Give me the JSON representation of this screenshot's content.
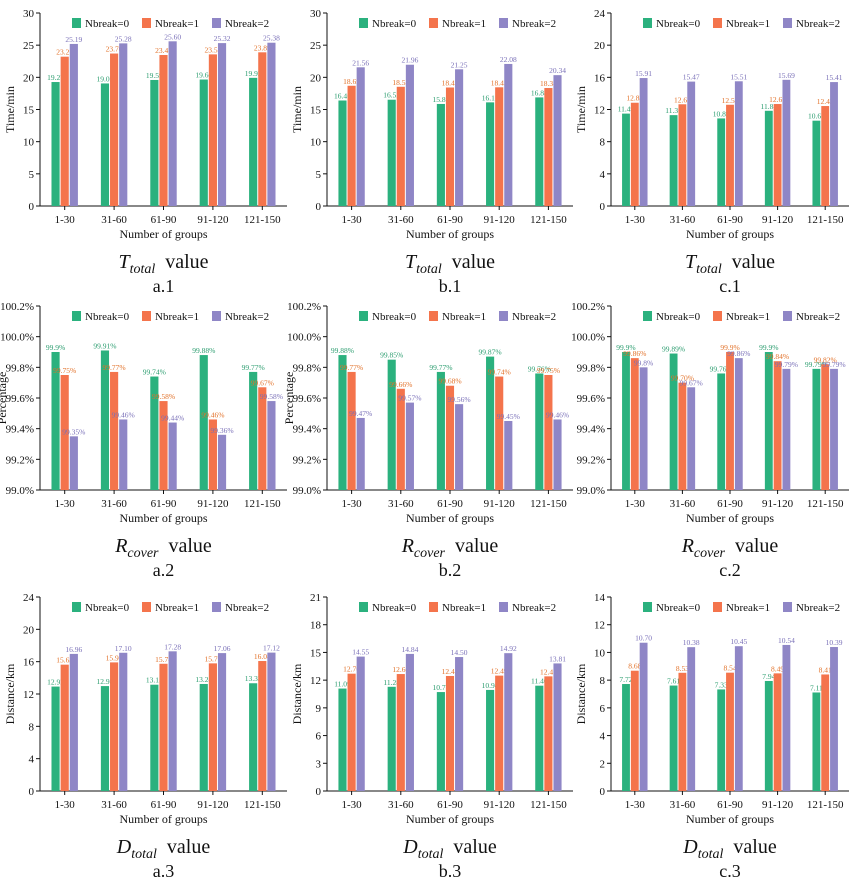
{
  "colors": {
    "nbreak0": "#2bb17e",
    "nbreak1": "#f4744c",
    "nbreak2": "#8f86c6",
    "label0": "#2a9c6e",
    "label1": "#e2722a",
    "label2": "#7a70b8",
    "axis": "#111111",
    "grid": "#ececec"
  },
  "chart_data": [
    {
      "id": "a1",
      "type": "bar",
      "xlabel": "Number of groups",
      "ylabel": "Time/min",
      "metric": "T",
      "metric_sub": "total",
      "metric_suffix": "value",
      "sub_label": "a.1",
      "categories": [
        "1-30",
        "31-60",
        "61-90",
        "91-120",
        "121-150"
      ],
      "series": [
        {
          "name": "Nbreak=0",
          "values": [
            19.27,
            19.05,
            19.59,
            19.66,
            19.92
          ],
          "labels": [
            "19.27",
            "19.05",
            "19.59",
            "19.66",
            "19.92"
          ]
        },
        {
          "name": "Nbreak=1",
          "values": [
            23.21,
            23.7,
            23.47,
            23.57,
            23.89
          ],
          "labels": [
            "23.21",
            "23.70",
            "23.47",
            "23.57",
            "23.89"
          ]
        },
        {
          "name": "Nbreak=2",
          "values": [
            25.19,
            25.28,
            25.6,
            25.32,
            25.38
          ],
          "labels": [
            "25.19",
            "25.28",
            "25.60",
            "25.32",
            "25.38"
          ]
        }
      ],
      "ylim": [
        0,
        30
      ],
      "yticks": [
        0,
        5,
        10,
        15,
        20,
        25,
        30
      ],
      "ytick_labels": [
        "0",
        "5",
        "10",
        "15",
        "20",
        "25",
        "30"
      ]
    },
    {
      "id": "b1",
      "type": "bar",
      "xlabel": "Number of groups",
      "ylabel": "Time/min",
      "metric": "T",
      "metric_sub": "total",
      "metric_suffix": "value",
      "sub_label": "b.1",
      "categories": [
        "1-30",
        "31-60",
        "61-90",
        "91-120",
        "121-150"
      ],
      "series": [
        {
          "name": "Nbreak=0",
          "values": [
            16.4,
            16.52,
            15.86,
            16.11,
            16.88
          ],
          "labels": [
            "16.40",
            "16.52",
            "15.86",
            "16.11",
            "16.88"
          ]
        },
        {
          "name": "Nbreak=1",
          "values": [
            18.69,
            18.53,
            18.42,
            18.45,
            18.34
          ],
          "labels": [
            "18.69",
            "18.53",
            "18.42",
            "18.45",
            "18.34"
          ]
        },
        {
          "name": "Nbreak=2",
          "values": [
            21.56,
            21.96,
            21.25,
            22.08,
            20.34
          ],
          "labels": [
            "21.56",
            "21.96",
            "21.25",
            "22.08",
            "20.34"
          ]
        }
      ],
      "ylim": [
        0,
        30
      ],
      "yticks": [
        0,
        5,
        10,
        15,
        20,
        25,
        30
      ],
      "ytick_labels": [
        "0",
        "5",
        "10",
        "15",
        "20",
        "25",
        "30"
      ]
    },
    {
      "id": "c1",
      "type": "bar",
      "xlabel": "Number of groups",
      "ylabel": "Time/min",
      "metric": "T",
      "metric_sub": "total",
      "metric_suffix": "value",
      "sub_label": "c.1",
      "categories": [
        "1-30",
        "31-60",
        "61-90",
        "91-120",
        "121-150"
      ],
      "series": [
        {
          "name": "Nbreak=0",
          "values": [
            11.49,
            11.3,
            10.89,
            11.84,
            10.61
          ],
          "labels": [
            "11.49",
            "11.30",
            "10.89",
            "11.84",
            "10.61"
          ]
        },
        {
          "name": "Nbreak=1",
          "values": [
            12.84,
            12.65,
            12.59,
            12.68,
            12.43
          ],
          "labels": [
            "12.84",
            "12.65",
            "12.59",
            "12.68",
            "12.43"
          ]
        },
        {
          "name": "Nbreak=2",
          "values": [
            15.91,
            15.47,
            15.51,
            15.69,
            15.41
          ],
          "labels": [
            "15.91",
            "15.47",
            "15.51",
            "15.69",
            "15.41"
          ]
        }
      ],
      "ylim": [
        0,
        24
      ],
      "yticks": [
        0,
        4,
        8,
        12,
        16,
        20,
        24
      ],
      "ytick_labels": [
        "0",
        "4",
        "8",
        "12",
        "16",
        "20",
        "24"
      ]
    },
    {
      "id": "a2",
      "type": "bar",
      "xlabel": "Number of groups",
      "ylabel": "Percentage",
      "metric": "R",
      "metric_sub": "cover",
      "metric_suffix": "value",
      "sub_label": "a.2",
      "categories": [
        "1-30",
        "31-60",
        "61-90",
        "91-120",
        "121-150"
      ],
      "series": [
        {
          "name": "Nbreak=0",
          "values": [
            99.9,
            99.91,
            99.74,
            99.88,
            99.77
          ],
          "labels": [
            "99.9%",
            "99.91%",
            "99.74%",
            "99.88%",
            "99.77%"
          ]
        },
        {
          "name": "Nbreak=1",
          "values": [
            99.75,
            99.77,
            99.58,
            99.46,
            99.67
          ],
          "labels": [
            "99.75%",
            "99.77%",
            "99.58%",
            "99.46%",
            "99.67%"
          ]
        },
        {
          "name": "Nbreak=2",
          "values": [
            99.35,
            99.46,
            99.44,
            99.36,
            99.58
          ],
          "labels": [
            "99.35%",
            "99.46%",
            "99.44%",
            "99.36%",
            "99.58%"
          ]
        }
      ],
      "ylim": [
        99.0,
        100.2
      ],
      "yticks": [
        99.0,
        99.2,
        99.4,
        99.6,
        99.8,
        100.0,
        100.2
      ],
      "ytick_labels": [
        "99.0%",
        "99.2%",
        "99.4%",
        "99.6%",
        "99.8%",
        "100.0%",
        "100.2%"
      ]
    },
    {
      "id": "b2",
      "type": "bar",
      "xlabel": "Number of groups",
      "ylabel": "Percentage",
      "metric": "R",
      "metric_sub": "cover",
      "metric_suffix": "value",
      "sub_label": "b.2",
      "categories": [
        "1-30",
        "31-60",
        "61-90",
        "91-120",
        "121-150"
      ],
      "series": [
        {
          "name": "Nbreak=0",
          "values": [
            99.88,
            99.85,
            99.77,
            99.87,
            99.76
          ],
          "labels": [
            "99.88%",
            "99.85%",
            "99.77%",
            "99.87%",
            "99.76%"
          ]
        },
        {
          "name": "Nbreak=1",
          "values": [
            99.77,
            99.66,
            99.68,
            99.74,
            99.75
          ],
          "labels": [
            "99.77%",
            "99.66%",
            "99.68%",
            "99.74%",
            "99.75%"
          ]
        },
        {
          "name": "Nbreak=2",
          "values": [
            99.47,
            99.57,
            99.56,
            99.45,
            99.46
          ],
          "labels": [
            "99.47%",
            "99.57%",
            "99.56%",
            "99.45%",
            "99.46%"
          ]
        }
      ],
      "ylim": [
        99.0,
        100.2
      ],
      "yticks": [
        99.0,
        99.2,
        99.4,
        99.6,
        99.8,
        100.0,
        100.2
      ],
      "ytick_labels": [
        "99.0%",
        "99.2%",
        "99.4%",
        "99.6%",
        "99.8%",
        "100.0%",
        "100.2%"
      ]
    },
    {
      "id": "c2",
      "type": "bar",
      "xlabel": "Number of groups",
      "ylabel": "",
      "metric": "R",
      "metric_sub": "cover",
      "metric_suffix": "value",
      "sub_label": "c.2",
      "categories": [
        "1-30",
        "31-60",
        "61-90",
        "91-120",
        "121-150"
      ],
      "series": [
        {
          "name": "Nbreak=0",
          "values": [
            99.9,
            99.89,
            99.76,
            99.9,
            99.79
          ],
          "labels": [
            "99.9%",
            "99.89%",
            "99.76%",
            "99.9%",
            "99.79%"
          ]
        },
        {
          "name": "Nbreak=1",
          "values": [
            99.86,
            99.7,
            99.9,
            99.84,
            99.82
          ],
          "labels": [
            "99.86%",
            "99.70%",
            "99.9%",
            "99.84%",
            "99.82%"
          ]
        },
        {
          "name": "Nbreak=2",
          "values": [
            99.8,
            99.67,
            99.86,
            99.79,
            99.79
          ],
          "labels": [
            "99.8%",
            "99.67%",
            "99.86%",
            "99.79%",
            "99.79%"
          ]
        }
      ],
      "ylim": [
        99.0,
        100.2
      ],
      "yticks": [
        99.0,
        99.2,
        99.4,
        99.6,
        99.8,
        100.0,
        100.2
      ],
      "ytick_labels": [
        "99.0%",
        "99.2%",
        "99.4%",
        "99.6%",
        "99.8%",
        "100.0%",
        "100.2%"
      ]
    },
    {
      "id": "a3",
      "type": "bar",
      "xlabel": "Number of groups",
      "ylabel": "Distance/km",
      "metric": "D",
      "metric_sub": "total",
      "metric_suffix": "value",
      "sub_label": "a.3",
      "categories": [
        "1-30",
        "31-60",
        "61-90",
        "91-120",
        "121-150"
      ],
      "series": [
        {
          "name": "Nbreak=0",
          "values": [
            12.92,
            12.98,
            13.15,
            13.24,
            13.33
          ],
          "labels": [
            "12.92",
            "12.98",
            "13.15",
            "13.24",
            "13.33"
          ]
        },
        {
          "name": "Nbreak=1",
          "values": [
            15.63,
            15.91,
            15.74,
            15.79,
            16.08
          ],
          "labels": [
            "15.63",
            "15.91",
            "15.74",
            "15.79",
            "16.08"
          ]
        },
        {
          "name": "Nbreak=2",
          "values": [
            16.96,
            17.1,
            17.28,
            17.06,
            17.12
          ],
          "labels": [
            "16.96",
            "17.10",
            "17.28",
            "17.06",
            "17.12"
          ]
        }
      ],
      "ylim": [
        0,
        24
      ],
      "yticks": [
        0,
        4,
        8,
        12,
        16,
        20,
        24
      ],
      "ytick_labels": [
        "0",
        "4",
        "8",
        "12",
        "16",
        "20",
        "24"
      ]
    },
    {
      "id": "b3",
      "type": "bar",
      "xlabel": "Number of groups",
      "ylabel": "Distance/km",
      "metric": "D",
      "metric_sub": "total",
      "metric_suffix": "value",
      "sub_label": "b.3",
      "categories": [
        "1-30",
        "31-60",
        "61-90",
        "91-120",
        "121-150"
      ],
      "series": [
        {
          "name": "Nbreak=0",
          "values": [
            11.09,
            11.28,
            10.71,
            10.94,
            11.4
          ],
          "labels": [
            "11.09",
            "11.28",
            "10.71",
            "10.94",
            "11.40"
          ]
        },
        {
          "name": "Nbreak=1",
          "values": [
            12.7,
            12.66,
            12.45,
            12.49,
            12.41
          ],
          "labels": [
            "12.70",
            "12.66",
            "12.45",
            "12.49",
            "12.41"
          ]
        },
        {
          "name": "Nbreak=2",
          "values": [
            14.55,
            14.84,
            14.5,
            14.92,
            13.81
          ],
          "labels": [
            "14.55",
            "14.84",
            "14.50",
            "14.92",
            "13.81"
          ]
        }
      ],
      "ylim": [
        0,
        21
      ],
      "yticks": [
        0,
        3,
        6,
        9,
        12,
        15,
        18,
        21
      ],
      "ytick_labels": [
        "0",
        "3",
        "6",
        "9",
        "12",
        "15",
        "18",
        "21"
      ]
    },
    {
      "id": "c3",
      "type": "bar",
      "xlabel": "Number of groups",
      "ylabel": "Distance/km",
      "metric": "D",
      "metric_sub": "total",
      "metric_suffix": "value",
      "sub_label": "c.3",
      "categories": [
        "1-30",
        "31-60",
        "61-90",
        "91-120",
        "121-150"
      ],
      "series": [
        {
          "name": "Nbreak=0",
          "values": [
            7.72,
            7.61,
            7.33,
            7.94,
            7.11
          ],
          "labels": [
            "7.72",
            "7.61",
            "7.33",
            "7.94",
            "7.11"
          ]
        },
        {
          "name": "Nbreak=1",
          "values": [
            8.68,
            8.53,
            8.54,
            8.49,
            8.41
          ],
          "labels": [
            "8.68",
            "8.53",
            "8.54",
            "8.49",
            "8.41"
          ]
        },
        {
          "name": "Nbreak=2",
          "values": [
            10.7,
            10.38,
            10.45,
            10.54,
            10.39
          ],
          "labels": [
            "10.70",
            "10.38",
            "10.45",
            "10.54",
            "10.39"
          ]
        }
      ],
      "ylim": [
        0,
        14
      ],
      "yticks": [
        0,
        2,
        4,
        6,
        8,
        10,
        12,
        14
      ],
      "ytick_labels": [
        "0",
        "2",
        "4",
        "6",
        "8",
        "10",
        "12",
        "14"
      ]
    }
  ]
}
